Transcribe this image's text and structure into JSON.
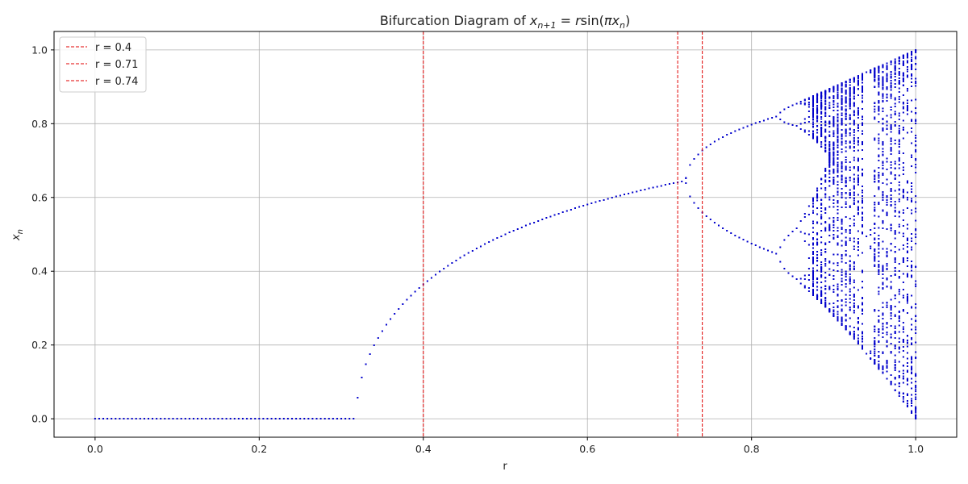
{
  "chart_data": {
    "type": "scatter",
    "title": "Bifurcation Diagram of x_{n+1} = r sin(π x_n)",
    "title_parts": {
      "lead": "Bifurcation Diagram of ",
      "x1": "x",
      "sub1": "n+1",
      "eq": " = ",
      "r": "r",
      "sin": "sin(",
      "pi": "π",
      "x2": "x",
      "sub2": "n",
      "close": ")"
    },
    "xlabel": "r",
    "ylabel": "x",
    "ylabel_sub": "n",
    "xlim": [
      -0.05,
      1.05
    ],
    "ylim": [
      -0.05,
      1.05
    ],
    "xticks": [
      "0.0",
      "0.2",
      "0.4",
      "0.6",
      "0.8",
      "1.0"
    ],
    "yticks": [
      "0.0",
      "0.2",
      "0.4",
      "0.6",
      "0.8",
      "1.0"
    ],
    "grid": true,
    "legend_position": "top-left",
    "point_color": "#0000cc",
    "map": "x_{n+1} = r sin(pi x_n)",
    "r_range": [
      0.0,
      1.0
    ],
    "r_samples": 201,
    "vlines": [
      {
        "label": "r = 0.4",
        "x": 0.4,
        "color": "#e00000",
        "style": "dashed"
      },
      {
        "label": "r = 0.71",
        "x": 0.71,
        "color": "#e00000",
        "style": "dashed"
      },
      {
        "label": "r = 0.74",
        "x": 0.74,
        "color": "#e00000",
        "style": "dashed"
      }
    ]
  }
}
